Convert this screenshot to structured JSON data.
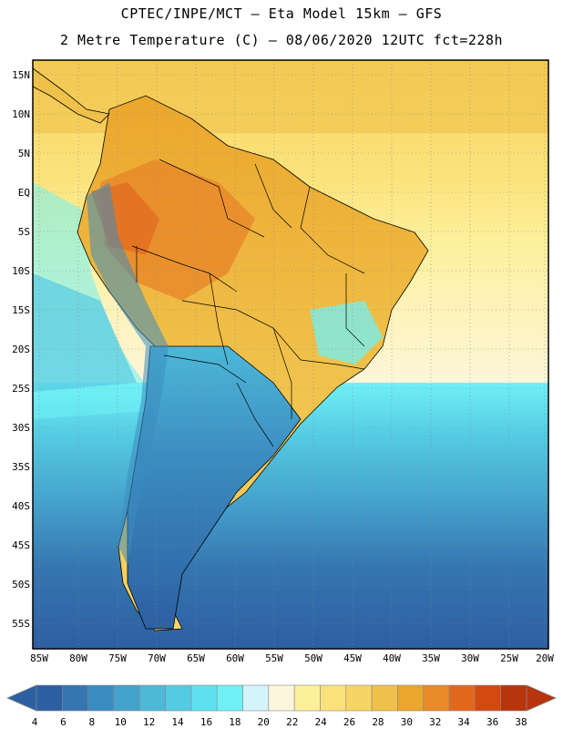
{
  "title": {
    "line1": "CPTEC/INPE/MCT –  Eta Model 15km – GFS",
    "line2": "2 Metre Temperature (C) – 08/06/2020 12UTC fct=228h"
  },
  "axes": {
    "lat_labels": [
      "15N",
      "10N",
      "5N",
      "EQ",
      "5S",
      "10S",
      "15S",
      "20S",
      "25S",
      "30S",
      "35S",
      "40S",
      "45S",
      "50S",
      "55S"
    ],
    "lon_labels": [
      "85W",
      "80W",
      "75W",
      "70W",
      "65W",
      "60W",
      "55W",
      "50W",
      "45W",
      "40W",
      "35W",
      "30W",
      "25W",
      "20W"
    ]
  },
  "legend": {
    "values": [
      "4",
      "6",
      "8",
      "10",
      "12",
      "14",
      "16",
      "18",
      "20",
      "22",
      "24",
      "26",
      "28",
      "30",
      "32",
      "34",
      "36",
      "38"
    ],
    "colors": [
      "#2d5fa3",
      "#3575b0",
      "#3b8cc0",
      "#44a2cc",
      "#4db8d8",
      "#55cbe3",
      "#5fe0ee",
      "#70f0f5",
      "#d3f4fa",
      "#fdf6dc",
      "#fdf09b",
      "#fbe27a",
      "#f6d565",
      "#f0c14a",
      "#eba62d",
      "#e8892a",
      "#e2681e",
      "#d34a10",
      "#b8340c"
    ]
  }
}
